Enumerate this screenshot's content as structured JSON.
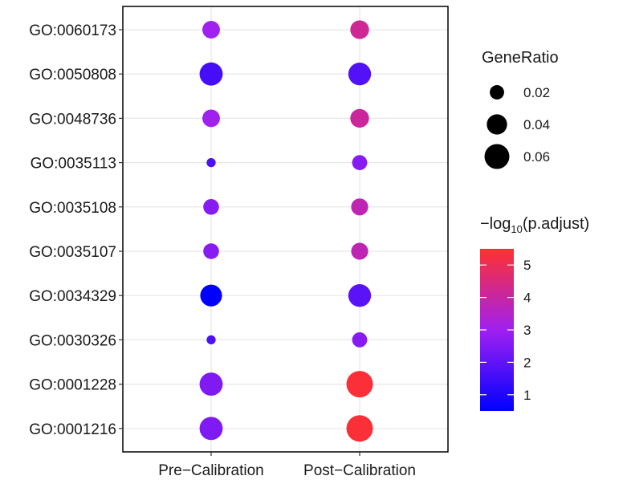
{
  "chart_data": {
    "type": "scatter",
    "title": "",
    "xlabel": "",
    "ylabel": "",
    "x_categories": [
      "Pre−Calibration",
      "Post−Calibration"
    ],
    "y_categories": [
      "GO:0060173",
      "GO:0050808",
      "GO:0048736",
      "GO:0035113",
      "GO:0035108",
      "GO:0035107",
      "GO:0034329",
      "GO:0030326",
      "GO:0001228",
      "GO:0001216"
    ],
    "points": [
      {
        "x": "Pre−Calibration",
        "y": "GO:0060173",
        "gene_ratio": 0.03,
        "neg_log10_padj": 3.0
      },
      {
        "x": "Post−Calibration",
        "y": "GO:0060173",
        "gene_ratio": 0.034,
        "neg_log10_padj": 4.2
      },
      {
        "x": "Pre−Calibration",
        "y": "GO:0050808",
        "gene_ratio": 0.052,
        "neg_log10_padj": 1.6
      },
      {
        "x": "Post−Calibration",
        "y": "GO:0050808",
        "gene_ratio": 0.05,
        "neg_log10_padj": 1.8
      },
      {
        "x": "Pre−Calibration",
        "y": "GO:0048736",
        "gene_ratio": 0.03,
        "neg_log10_padj": 3.0
      },
      {
        "x": "Post−Calibration",
        "y": "GO:0048736",
        "gene_ratio": 0.034,
        "neg_log10_padj": 4.1
      },
      {
        "x": "Pre−Calibration",
        "y": "GO:0035113",
        "gene_ratio": 0.008,
        "neg_log10_padj": 1.7
      },
      {
        "x": "Post−Calibration",
        "y": "GO:0035113",
        "gene_ratio": 0.022,
        "neg_log10_padj": 2.6
      },
      {
        "x": "Pre−Calibration",
        "y": "GO:0035108",
        "gene_ratio": 0.024,
        "neg_log10_padj": 2.6
      },
      {
        "x": "Post−Calibration",
        "y": "GO:0035108",
        "gene_ratio": 0.028,
        "neg_log10_padj": 3.8
      },
      {
        "x": "Pre−Calibration",
        "y": "GO:0035107",
        "gene_ratio": 0.024,
        "neg_log10_padj": 2.6
      },
      {
        "x": "Post−Calibration",
        "y": "GO:0035107",
        "gene_ratio": 0.028,
        "neg_log10_padj": 3.8
      },
      {
        "x": "Pre−Calibration",
        "y": "GO:0034329",
        "gene_ratio": 0.046,
        "neg_log10_padj": 0.5
      },
      {
        "x": "Post−Calibration",
        "y": "GO:0034329",
        "gene_ratio": 0.05,
        "neg_log10_padj": 1.9
      },
      {
        "x": "Pre−Calibration",
        "y": "GO:0030326",
        "gene_ratio": 0.008,
        "neg_log10_padj": 1.7
      },
      {
        "x": "Post−Calibration",
        "y": "GO:0030326",
        "gene_ratio": 0.022,
        "neg_log10_padj": 2.6
      },
      {
        "x": "Pre−Calibration",
        "y": "GO:0001228",
        "gene_ratio": 0.052,
        "neg_log10_padj": 2.5
      },
      {
        "x": "Post−Calibration",
        "y": "GO:0001228",
        "gene_ratio": 0.068,
        "neg_log10_padj": 5.4
      },
      {
        "x": "Pre−Calibration",
        "y": "GO:0001216",
        "gene_ratio": 0.052,
        "neg_log10_padj": 2.5
      },
      {
        "x": "Post−Calibration",
        "y": "GO:0001216",
        "gene_ratio": 0.068,
        "neg_log10_padj": 5.4
      }
    ],
    "size_legend": {
      "title": "GeneRatio",
      "values": [
        0.02,
        0.04,
        0.06
      ],
      "labels": [
        "0.02",
        "0.04",
        "0.06"
      ]
    },
    "color_legend": {
      "title_prefix": "−log",
      "title_subscript": "10",
      "title_suffix": "(p.adjust)",
      "range": [
        0.5,
        5.5
      ],
      "ticks": [
        1,
        2,
        3,
        4,
        5
      ],
      "tick_labels": [
        "1",
        "2",
        "3",
        "4",
        "5"
      ],
      "low_color": "#0000ff",
      "mid_color": "#a020f0",
      "high_color": "#ff3030"
    },
    "grid": true,
    "legend_position": "right"
  }
}
